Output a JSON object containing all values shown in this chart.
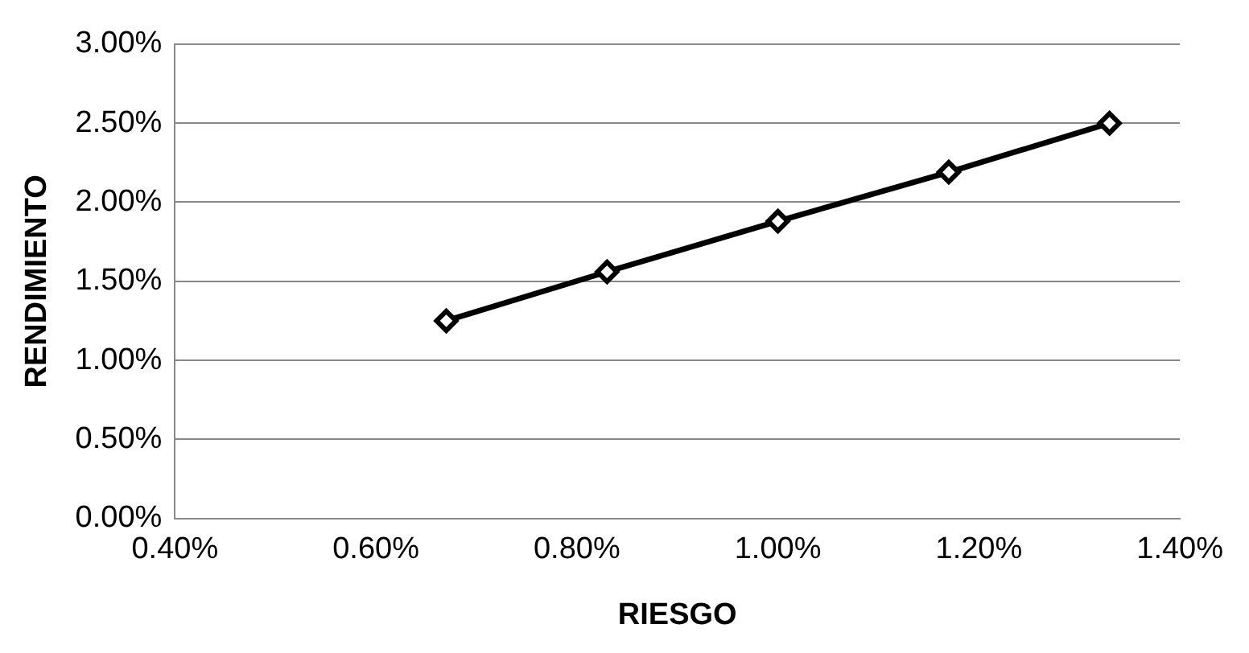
{
  "chart_data": {
    "type": "line",
    "xlabel": "RIESGO",
    "ylabel": "RENDIMIENTO",
    "x": [
      0.67,
      0.83,
      1.0,
      1.17,
      1.33
    ],
    "series": [
      {
        "color": "#000000",
        "values": [
          1.25,
          1.56,
          1.88,
          2.19,
          2.5
        ]
      }
    ],
    "xlim": [
      0.4,
      1.4
    ],
    "xticks": [
      {
        "value": 0.4,
        "label": "0.40%"
      },
      {
        "value": 0.6,
        "label": "0.60%"
      },
      {
        "value": 0.8,
        "label": "0.80%"
      },
      {
        "value": 1.0,
        "label": "1.00%"
      },
      {
        "value": 1.2,
        "label": "1.20%"
      },
      {
        "value": 1.4,
        "label": "1.40%"
      }
    ],
    "ylim": [
      0,
      3
    ],
    "yticks": [
      {
        "value": 0,
        "label": "0.00%"
      },
      {
        "value": 0.5,
        "label": "0.50%"
      },
      {
        "value": 1,
        "label": "1.00%"
      },
      {
        "value": 1.5,
        "label": "1.50%"
      },
      {
        "value": 2,
        "label": "2.00%"
      },
      {
        "value": 2.5,
        "label": "2.50%"
      },
      {
        "value": 3,
        "label": "3.00%"
      }
    ],
    "grid": "y",
    "marker": "diamond",
    "line_style": "solid",
    "legend": false
  }
}
